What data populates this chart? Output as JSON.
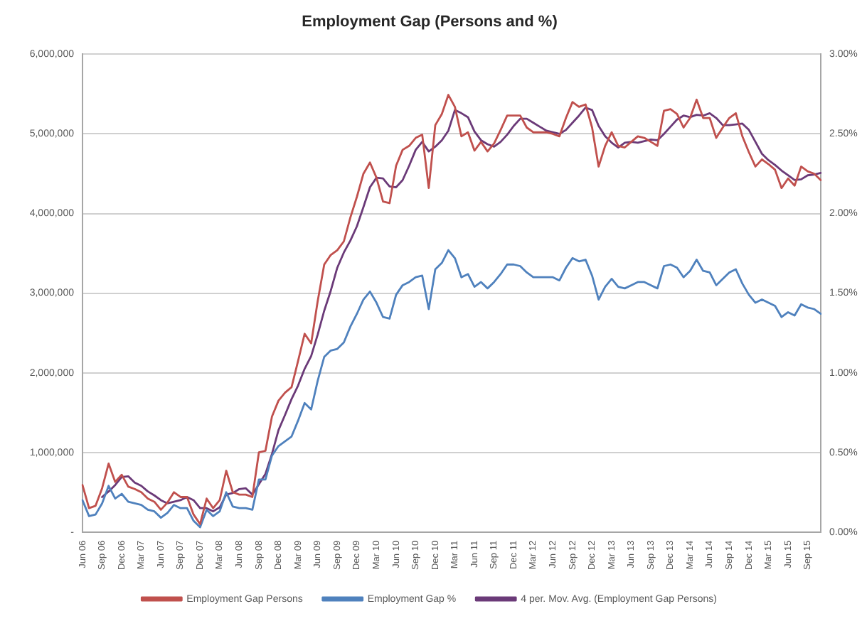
{
  "chart_data": {
    "type": "line",
    "title": "Employment Gap (Persons and %)",
    "categories": [
      "Jun 06",
      null,
      null,
      "Sep 06",
      null,
      null,
      "Dec 06",
      null,
      null,
      "Mar 07",
      null,
      null,
      "Jun 07",
      null,
      null,
      "Sep 07",
      null,
      null,
      "Dec 07",
      null,
      null,
      "Mar 08",
      null,
      null,
      "Jun 08",
      null,
      null,
      "Sep 08",
      null,
      null,
      "Dec 08",
      null,
      null,
      "Mar 09",
      null,
      null,
      "Jun 09",
      null,
      null,
      "Sep 09",
      null,
      null,
      "Dec 09",
      null,
      null,
      "Mar 10",
      null,
      null,
      "Jun 10",
      null,
      null,
      "Sep 10",
      null,
      null,
      "Dec 10",
      null,
      null,
      "Mar 11",
      null,
      null,
      "Jun 11",
      null,
      null,
      "Sep 11",
      null,
      null,
      "Dec 11",
      null,
      null,
      "Mar 12",
      null,
      null,
      "Jun 12",
      null,
      null,
      "Sep 12",
      null,
      null,
      "Dec 12",
      null,
      null,
      "Mar 13",
      null,
      null,
      "Jun 13",
      null,
      null,
      "Sep 13",
      null,
      null,
      "Dec 13",
      null,
      null,
      "Mar 14",
      null,
      null,
      "Jun 14",
      null,
      null,
      "Sep 14",
      null,
      null,
      "Dec 14",
      null,
      null,
      "Mar 15",
      null,
      null,
      "Jun 15",
      null,
      null,
      "Sep 15",
      null,
      null
    ],
    "series": [
      {
        "name": "Employment Gap Persons",
        "color": "#c0504d",
        "values": [
          590000,
          300000,
          330000,
          550000,
          860000,
          630000,
          720000,
          570000,
          540000,
          500000,
          420000,
          380000,
          280000,
          370000,
          500000,
          440000,
          440000,
          220000,
          100000,
          420000,
          300000,
          400000,
          770000,
          500000,
          470000,
          470000,
          440000,
          1000000,
          1020000,
          1450000,
          1650000,
          1750000,
          1820000,
          2150000,
          2490000,
          2370000,
          2900000,
          3360000,
          3480000,
          3540000,
          3650000,
          3950000,
          4210000,
          4500000,
          4640000,
          4450000,
          4150000,
          4130000,
          4600000,
          4800000,
          4850000,
          4950000,
          4990000,
          4320000,
          5110000,
          5250000,
          5490000,
          5340000,
          4970000,
          5020000,
          4790000,
          4900000,
          4780000,
          4880000,
          5050000,
          5230000,
          5230000,
          5230000,
          5080000,
          5020000,
          5020000,
          5020000,
          5000000,
          4970000,
          5200000,
          5400000,
          5340000,
          5370000,
          5080000,
          4590000,
          4850000,
          5020000,
          4850000,
          4830000,
          4900000,
          4970000,
          4950000,
          4900000,
          4850000,
          5290000,
          5310000,
          5250000,
          5080000,
          5200000,
          5430000,
          5200000,
          5200000,
          4950000,
          5080000,
          5200000,
          5260000,
          4970000,
          4770000,
          4590000,
          4680000,
          4620000,
          4550000,
          4320000,
          4440000,
          4350000,
          4590000,
          4530000,
          4500000,
          4420000
        ]
      },
      {
        "name": "Employment Gap %",
        "color": "#4f81bd",
        "axis": "y2",
        "values": [
          0.2,
          0.1,
          0.11,
          0.18,
          0.29,
          0.21,
          0.24,
          0.19,
          0.18,
          0.17,
          0.14,
          0.13,
          0.09,
          0.12,
          0.17,
          0.15,
          0.15,
          0.07,
          0.03,
          0.14,
          0.1,
          0.13,
          0.25,
          0.16,
          0.15,
          0.15,
          0.14,
          0.33,
          0.33,
          0.48,
          0.54,
          0.57,
          0.6,
          0.7,
          0.81,
          0.77,
          0.95,
          1.1,
          1.14,
          1.15,
          1.19,
          1.29,
          1.37,
          1.46,
          1.51,
          1.44,
          1.35,
          1.34,
          1.49,
          1.55,
          1.57,
          1.6,
          1.61,
          1.4,
          1.65,
          1.69,
          1.77,
          1.72,
          1.6,
          1.62,
          1.54,
          1.57,
          1.53,
          1.57,
          1.62,
          1.68,
          1.68,
          1.67,
          1.63,
          1.6,
          1.6,
          1.6,
          1.6,
          1.58,
          1.66,
          1.72,
          1.7,
          1.71,
          1.61,
          1.46,
          1.54,
          1.59,
          1.54,
          1.53,
          1.55,
          1.57,
          1.57,
          1.55,
          1.53,
          1.67,
          1.68,
          1.66,
          1.6,
          1.64,
          1.71,
          1.64,
          1.63,
          1.55,
          1.59,
          1.63,
          1.65,
          1.56,
          1.49,
          1.44,
          1.46,
          1.44,
          1.42,
          1.35,
          1.38,
          1.36,
          1.43,
          1.41,
          1.4,
          1.37
        ]
      },
      {
        "name": "4 per. Mov. Avg. (Employment Gap Persons)",
        "color": "#6b3a78",
        "values": [
          null,
          null,
          null,
          440000,
          510000,
          590000,
          690000,
          700000,
          620000,
          580000,
          510000,
          460000,
          400000,
          360000,
          380000,
          400000,
          440000,
          400000,
          300000,
          300000,
          260000,
          310000,
          470000,
          490000,
          540000,
          550000,
          470000,
          600000,
          730000,
          980000,
          1280000,
          1470000,
          1670000,
          1840000,
          2050000,
          2210000,
          2480000,
          2780000,
          3030000,
          3320000,
          3510000,
          3660000,
          3840000,
          4080000,
          4330000,
          4450000,
          4440000,
          4340000,
          4330000,
          4420000,
          4600000,
          4800000,
          4900000,
          4780000,
          4840000,
          4920000,
          5040000,
          5300000,
          5260000,
          5210000,
          5030000,
          4920000,
          4870000,
          4840000,
          4900000,
          4990000,
          5100000,
          5190000,
          5190000,
          5140000,
          5090000,
          5040000,
          5020000,
          5000000,
          5050000,
          5140000,
          5230000,
          5330000,
          5300000,
          5100000,
          4970000,
          4890000,
          4830000,
          4890000,
          4900000,
          4890000,
          4910000,
          4930000,
          4920000,
          5000000,
          5090000,
          5180000,
          5230000,
          5210000,
          5240000,
          5230000,
          5260000,
          5200000,
          5110000,
          5110000,
          5120000,
          5130000,
          5050000,
          4900000,
          4750000,
          4670000,
          4610000,
          4540000,
          4480000,
          4420000,
          4430000,
          4480000,
          4490000,
          4510000
        ]
      }
    ],
    "ylim": [
      0,
      6000000
    ],
    "yticks": [
      {
        "value": 0,
        "label": "-"
      },
      {
        "value": 1000000,
        "label": "1,000,000"
      },
      {
        "value": 2000000,
        "label": "2,000,000"
      },
      {
        "value": 3000000,
        "label": "3,000,000"
      },
      {
        "value": 4000000,
        "label": "4,000,000"
      },
      {
        "value": 5000000,
        "label": "5,000,000"
      },
      {
        "value": 6000000,
        "label": "6,000,000"
      }
    ],
    "y2lim": [
      0,
      3
    ],
    "y2ticks": [
      {
        "value": 0,
        "label": "0.00%"
      },
      {
        "value": 0.5,
        "label": "0.50%"
      },
      {
        "value": 1,
        "label": "1.00%"
      },
      {
        "value": 1.5,
        "label": "1.50%"
      },
      {
        "value": 2,
        "label": "2.00%"
      },
      {
        "value": 2.5,
        "label": "2.50%"
      },
      {
        "value": 3,
        "label": "3.00%"
      }
    ],
    "grid": "y",
    "legend": "bottom",
    "marker": "none"
  }
}
